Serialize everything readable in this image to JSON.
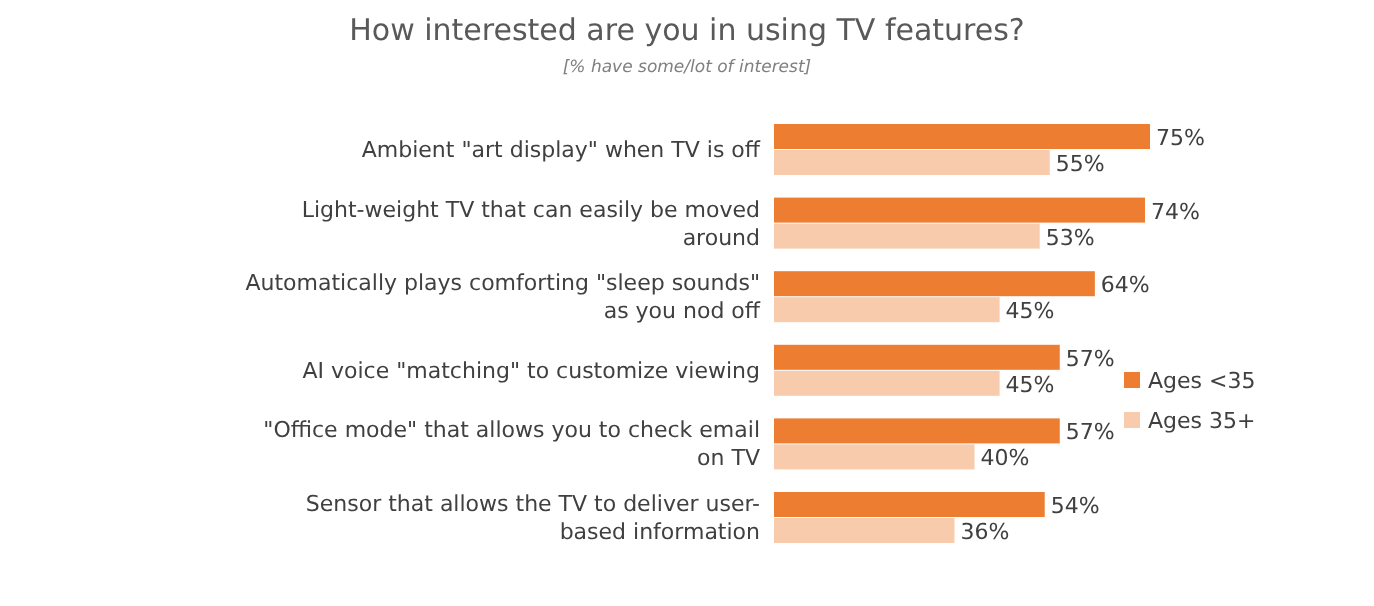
{
  "chart_data": {
    "type": "bar",
    "orientation": "horizontal",
    "title": "How interested are you in using TV features?",
    "subtitle": "[% have some/lot of interest]",
    "categories": [
      "Ambient \"art display\" when TV is off",
      "Light-weight TV that can easily be moved around",
      "Automatically plays comforting \"sleep sounds\" as you nod off",
      "AI voice \"matching\" to customize viewing",
      "\"Office mode\" that allows you to check email on TV",
      "Sensor that allows the TV to deliver user-based information"
    ],
    "series": [
      {
        "name": "Ages <35",
        "color": "#ed7d31",
        "values": [
          75,
          74,
          64,
          57,
          57,
          54
        ],
        "value_labels": [
          "75%",
          "74%",
          "64%",
          "57%",
          "57%",
          "54%"
        ]
      },
      {
        "name": "Ages 35+",
        "color": "#f8cbad",
        "values": [
          55,
          53,
          45,
          45,
          40,
          36
        ],
        "value_labels": [
          "55%",
          "53%",
          "45%",
          "45%",
          "40%",
          "36%"
        ]
      }
    ],
    "legend": "right"
  }
}
